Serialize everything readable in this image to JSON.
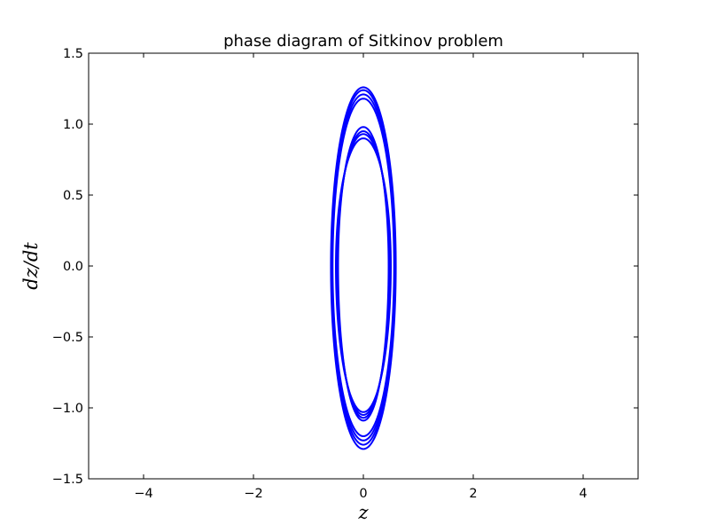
{
  "chart_data": {
    "type": "line",
    "title": "phase diagram of Sitkinov problem",
    "xlabel": "z",
    "ylabel": "dz/dt",
    "xlim": [
      -5,
      5
    ],
    "ylim": [
      -1.5,
      1.5
    ],
    "xticks": [
      -4,
      -2,
      0,
      2,
      4
    ],
    "xtick_labels": [
      "−4",
      "−2",
      "0",
      "2",
      "4"
    ],
    "yticks": [
      -1.5,
      -1.0,
      -0.5,
      0.0,
      0.5,
      1.0,
      1.5
    ],
    "ytick_labels": [
      "−1.5",
      "−1.0",
      "−0.5",
      "0.0",
      "0.5",
      "1.0",
      "1.5"
    ],
    "grid": false,
    "legend": "none",
    "series_color": "#0000ff",
    "series": [
      {
        "description": "family of closed phase-space orbits (trajectory loops) centered at origin",
        "loops": [
          {
            "z_amplitude": 0.5,
            "v_top": 0.9,
            "v_bottom": -1.03
          },
          {
            "z_amplitude": 0.48,
            "v_top": 0.93,
            "v_bottom": -1.05
          },
          {
            "z_amplitude": 0.47,
            "v_top": 0.95,
            "v_bottom": -1.07
          },
          {
            "z_amplitude": 0.46,
            "v_top": 0.98,
            "v_bottom": -1.09
          },
          {
            "z_amplitude": 0.56,
            "v_top": 1.18,
            "v_bottom": -1.2
          },
          {
            "z_amplitude": 0.57,
            "v_top": 1.21,
            "v_bottom": -1.23
          },
          {
            "z_amplitude": 0.58,
            "v_top": 1.24,
            "v_bottom": -1.26
          },
          {
            "z_amplitude": 0.59,
            "v_top": 1.26,
            "v_bottom": -1.29
          }
        ]
      }
    ]
  }
}
